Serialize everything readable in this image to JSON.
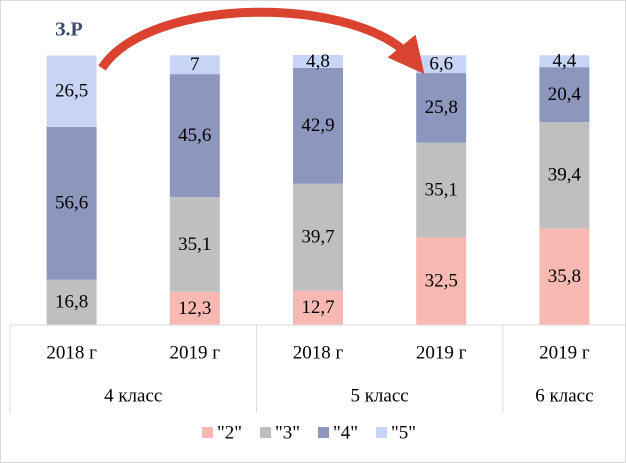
{
  "chart_data": {
    "type": "stacked-bar",
    "annotation": "З.Р",
    "categories": [
      "2018 г",
      "2019 г",
      "2018 г",
      "2019 г",
      "2019 г"
    ],
    "groups": [
      {
        "label": "4 класс",
        "span": 2
      },
      {
        "label": "5 класс",
        "span": 2
      },
      {
        "label": "6 класс",
        "span": 1
      }
    ],
    "series": [
      {
        "name": "\"2\"",
        "color": "#f7b9b1",
        "values": [
          null,
          12.3,
          12.7,
          32.5,
          35.8
        ],
        "value_labels": [
          null,
          "12,3",
          "12,7",
          "32,5",
          "35,8"
        ]
      },
      {
        "name": "\"3\"",
        "color": "#bfbfbf",
        "values": [
          16.8,
          35.1,
          39.7,
          35.1,
          39.4
        ],
        "value_labels": [
          "16,8",
          "35,1",
          "39,7",
          "35,1",
          "39,4"
        ]
      },
      {
        "name": "\"4\"",
        "color": "#8d96bd",
        "values": [
          56.6,
          45.6,
          42.9,
          25.8,
          20.4
        ],
        "value_labels": [
          "56,6",
          "45,6",
          "42,9",
          "25,8",
          "20,4"
        ]
      },
      {
        "name": "\"5\"",
        "color": "#c8d4f6",
        "values": [
          26.5,
          7,
          4.8,
          6.6,
          4.4
        ],
        "value_labels": [
          "26,5",
          "7",
          "4,8",
          "6,6",
          "4,4"
        ]
      }
    ],
    "legend": "bottom"
  }
}
